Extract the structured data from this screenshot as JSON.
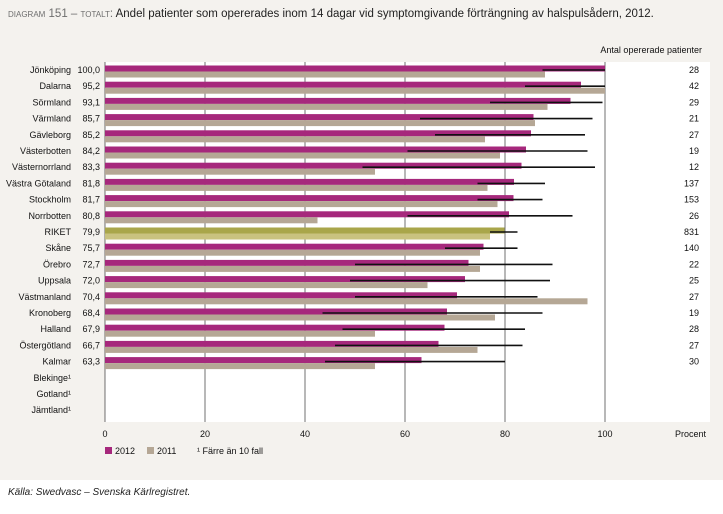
{
  "title": {
    "tag": "diagram 151 – totalt:",
    "text": "Andel patienter som opererades inom 14 dagar vid symptomgivande förträngning av halspulsådern, 2012."
  },
  "source": "Källa: Swedvasc – Svenska Kärlregistret.",
  "colors": {
    "y2012": "#a6287c",
    "y2011": "#b5a795",
    "riket2012": "#a9a64a",
    "riket2011": "#c9c27f",
    "ci": "#111111",
    "grid": "#111111"
  },
  "chart_data": {
    "type": "bar",
    "orientation": "horizontal",
    "categories": [
      "Jönköping",
      "Dalarna",
      "Sörmland",
      "Värmland",
      "Gävleborg",
      "Västerbotten",
      "Västernorrland",
      "Västra Götaland",
      "Stockholm",
      "Norrbotten",
      "RIKET",
      "Skåne",
      "Örebro",
      "Uppsala",
      "Västmanland",
      "Kronoberg",
      "Halland",
      "Östergötland",
      "Kalmar",
      "Blekinge¹",
      "Gotland¹",
      "Jämtland¹"
    ],
    "value_labels": [
      "100,0",
      "95,2",
      "93,1",
      "85,7",
      "85,2",
      "84,2",
      "83,3",
      "81,8",
      "81,7",
      "80,8",
      "79,9",
      "75,7",
      "72,7",
      "72,0",
      "70,4",
      "68,4",
      "67,9",
      "66,7",
      "63,3",
      "",
      "",
      ""
    ],
    "series": [
      {
        "name": "2012",
        "values": [
          100.0,
          95.2,
          93.1,
          85.7,
          85.2,
          84.2,
          83.3,
          81.8,
          81.7,
          80.8,
          79.9,
          75.7,
          72.7,
          72.0,
          70.4,
          68.4,
          67.9,
          66.7,
          63.3,
          null,
          null,
          null
        ]
      },
      {
        "name": "2011",
        "values": [
          88,
          100,
          88.5,
          86,
          76,
          79,
          54,
          76.5,
          78.5,
          42.5,
          77,
          75,
          75,
          64.5,
          96.5,
          78,
          54,
          74.5,
          54,
          null,
          null,
          null
        ]
      }
    ],
    "ci_low": [
      87.5,
      84,
      77,
      63,
      66,
      60.5,
      51.5,
      74.5,
      74.5,
      60.5,
      77,
      68,
      50,
      49,
      50,
      43.5,
      47.5,
      46,
      44,
      null,
      null,
      null
    ],
    "ci_high": [
      100,
      100,
      99.5,
      97.5,
      96,
      96.5,
      98,
      88,
      87.5,
      93.5,
      82.5,
      82.5,
      89.5,
      89,
      86.5,
      87.5,
      84,
      83.5,
      80,
      null,
      null,
      null
    ],
    "right_header": "Antal opererade patienter",
    "counts": [
      "28",
      "42",
      "29",
      "21",
      "27",
      "19",
      "12",
      "137",
      "153",
      "26",
      "831",
      "140",
      "22",
      "25",
      "27",
      "19",
      "28",
      "27",
      "30",
      "",
      "",
      ""
    ],
    "highlight_category": "RIKET",
    "xlim": [
      0,
      100
    ],
    "xticks": [
      "0",
      "20",
      "40",
      "60",
      "80",
      "100"
    ],
    "xlabel": "Procent",
    "legend": [
      {
        "label": "2012",
        "color_key": "y2012"
      },
      {
        "label": "2011",
        "color_key": "y2011"
      },
      {
        "label": "¹ Färre än 10 fall",
        "color_key": null
      }
    ],
    "legend_position": "bottom-left",
    "grid": true
  }
}
